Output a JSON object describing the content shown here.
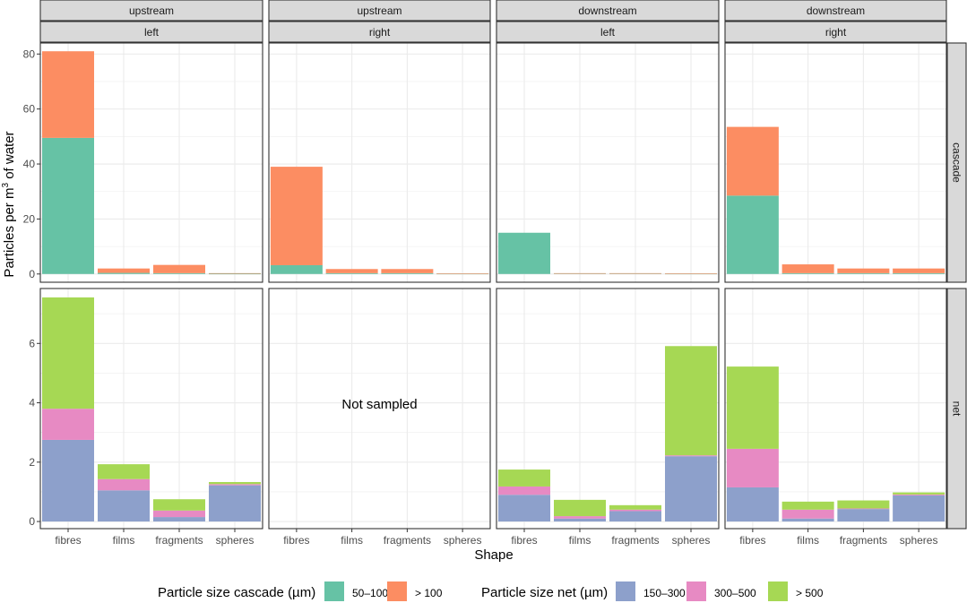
{
  "chart_data": {
    "type": "bar",
    "stacked": true,
    "ylabel_prefix": "Particles per m",
    "ylabel_sup": "3",
    "ylabel_suffix": " of water",
    "xlabel": "Shape",
    "categories": [
      "fibres",
      "films",
      "fragments",
      "spheres"
    ],
    "col_strips_top": [
      "upstream",
      "upstream",
      "downstream",
      "downstream"
    ],
    "col_strips_bottom": [
      "left",
      "right",
      "left",
      "right"
    ],
    "row_strips": [
      "cascade",
      "net"
    ],
    "rows": [
      {
        "name": "cascade",
        "ylim": [
          -3,
          84
        ],
        "yticks": [
          0,
          20,
          40,
          60,
          80
        ],
        "tick_labels": [
          "0",
          "20",
          "40",
          "60",
          "80"
        ],
        "panels": [
          {
            "series": [
              {
                "name": "50–100",
                "values": [
                  49.5,
                  0.4,
                  0.3,
                  0.1
                ]
              },
              {
                "name": "> 100",
                "values": [
                  31.5,
                  1.6,
                  3.0,
                  0.2
                ]
              }
            ]
          },
          {
            "series": [
              {
                "name": "50–100",
                "values": [
                  3.2,
                  0.3,
                  0.3,
                  0.1
                ]
              },
              {
                "name": "> 100",
                "values": [
                  35.8,
                  1.5,
                  1.5,
                  0.1
                ]
              }
            ]
          },
          {
            "series": [
              {
                "name": "50–100",
                "values": [
                  15.0,
                  0.2,
                  0.2,
                  0.1
                ]
              },
              {
                "name": "> 100",
                "values": [
                  0.0,
                  0.1,
                  0.1,
                  0.1
                ]
              }
            ]
          },
          {
            "series": [
              {
                "name": "50–100",
                "values": [
                  28.5,
                  0.3,
                  0.3,
                  0.3
                ]
              },
              {
                "name": "> 100",
                "values": [
                  25.0,
                  3.2,
                  1.7,
                  1.7
                ]
              }
            ]
          }
        ]
      },
      {
        "name": "net",
        "ylim": [
          -0.24,
          7.85
        ],
        "yticks": [
          0,
          2,
          4,
          6
        ],
        "tick_labels": [
          "0",
          "2",
          "4",
          "6"
        ],
        "panels": [
          {
            "series": [
              {
                "name": "150–300",
                "values": [
                  2.75,
                  1.05,
                  0.15,
                  1.22
                ]
              },
              {
                "name": "300–500",
                "values": [
                  1.05,
                  0.38,
                  0.22,
                  0.04
                ]
              },
              {
                "name": "> 500",
                "values": [
                  3.75,
                  0.5,
                  0.38,
                  0.07
                ]
              }
            ]
          },
          {
            "not_sampled": true,
            "annotation": "Not sampled"
          },
          {
            "series": [
              {
                "name": "150–300",
                "values": [
                  0.9,
                  0.1,
                  0.35,
                  2.2
                ]
              },
              {
                "name": "300–500",
                "values": [
                  0.28,
                  0.08,
                  0.05,
                  0.03
                ]
              },
              {
                "name": "> 500",
                "values": [
                  0.57,
                  0.55,
                  0.15,
                  3.68
                ]
              }
            ]
          },
          {
            "series": [
              {
                "name": "150–300",
                "values": [
                  1.15,
                  0.1,
                  0.42,
                  0.88
                ]
              },
              {
                "name": "300–500",
                "values": [
                  1.3,
                  0.3,
                  0.02,
                  0.03
                ]
              },
              {
                "name": "> 500",
                "values": [
                  2.77,
                  0.27,
                  0.27,
                  0.07
                ]
              }
            ]
          }
        ]
      }
    ],
    "legends": [
      {
        "title": "Particle size cascade (µm)",
        "items": [
          {
            "label": "50–100",
            "color": "#66c2a5"
          },
          {
            "label": "> 100",
            "color": "#fc8d62"
          }
        ]
      },
      {
        "title": "Particle size net (µm)",
        "items": [
          {
            "label": "150–300",
            "color": "#8da0cb"
          },
          {
            "label": "300–500",
            "color": "#e78ac3"
          },
          {
            "label": "> 500",
            "color": "#a6d854"
          }
        ]
      }
    ],
    "colors": {
      "50–100": "#66c2a5",
      "> 100": "#fc8d62",
      "150–300": "#8da0cb",
      "300–500": "#e78ac3",
      "> 500": "#a6d854"
    },
    "grid": true,
    "legend_position": "bottom"
  }
}
